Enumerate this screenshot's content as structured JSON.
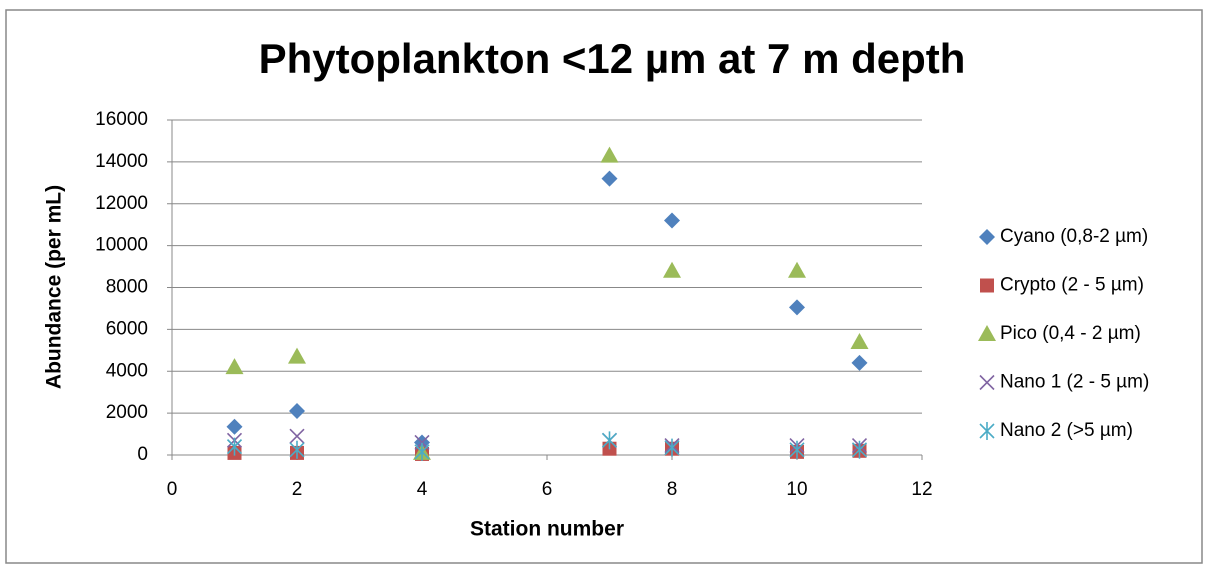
{
  "chart_data": {
    "type": "scatter",
    "title": "Phytoplankton  <12 µm at 7 m depth",
    "x_label": "Station number",
    "y_label": "Abundance (per mL)",
    "xlim": [
      0,
      12
    ],
    "xticks": [
      0,
      2,
      4,
      6,
      8,
      10,
      12
    ],
    "ylim": [
      0,
      16000
    ],
    "yticks": [
      0,
      2000,
      4000,
      6000,
      8000,
      10000,
      12000,
      14000,
      16000
    ],
    "grid": true,
    "legend": "right",
    "x": [
      1,
      2,
      4,
      7,
      8,
      10,
      11
    ],
    "series": [
      {
        "name": "Cyano (0,8-2 µm)",
        "color": "#4f81bd",
        "marker": "diamond",
        "values": [
          1350,
          2100,
          600,
          13200,
          11200,
          7050,
          4400
        ]
      },
      {
        "name": "Crypto (2 - 5 µm)",
        "color": "#c0504d",
        "marker": "square",
        "values": [
          100,
          100,
          50,
          300,
          300,
          150,
          200
        ]
      },
      {
        "name": "Pico (0,4 - 2 µm)",
        "color": "#9bbb59",
        "marker": "triangle",
        "values": [
          4200,
          4700,
          100,
          14300,
          8800,
          8800,
          5400
        ]
      },
      {
        "name": "Nano 1 (2 - 5 µm)",
        "color": "#8064a2",
        "marker": "x",
        "values": [
          700,
          900,
          600,
          700,
          450,
          450,
          450
        ]
      },
      {
        "name": "Nano 2 (>5 µm)",
        "color": "#4bacc6",
        "marker": "star",
        "values": [
          400,
          250,
          150,
          700,
          350,
          250,
          250
        ]
      }
    ]
  }
}
